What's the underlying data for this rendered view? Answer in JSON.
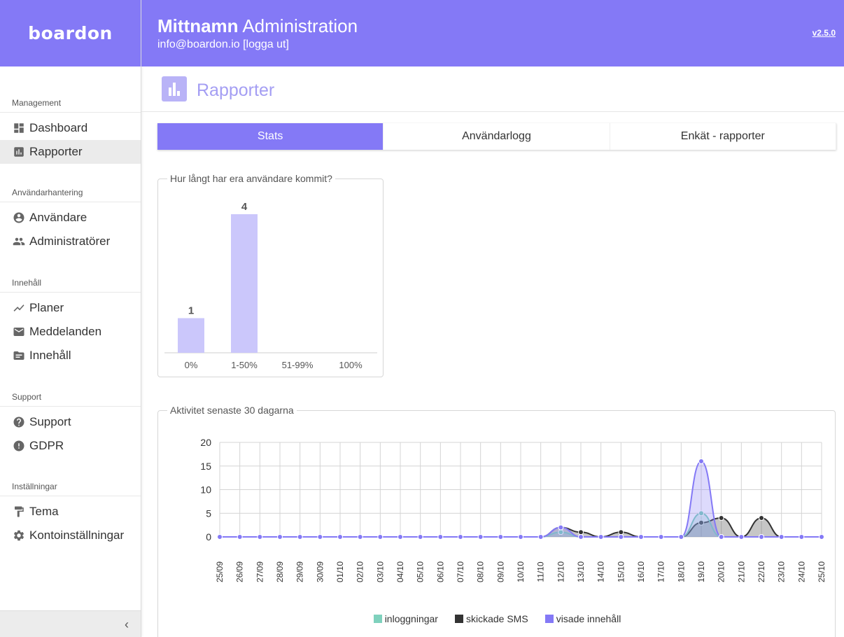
{
  "brand": {
    "logo": "boardon",
    "header_color": "#8479f6"
  },
  "header": {
    "title_bold": "Mittnamn",
    "title_rest": "Administration",
    "user_line": "info@boardon.io [logga ut]",
    "version": "v2.5.0"
  },
  "sidebar": {
    "groups": [
      {
        "heading": "Management",
        "items": [
          {
            "label": "Dashboard",
            "icon": "dashboard-icon"
          },
          {
            "label": "Rapporter",
            "icon": "bar-chart-icon",
            "active": true
          }
        ]
      },
      {
        "heading": "Användarhantering",
        "items": [
          {
            "label": "Användare",
            "icon": "account-circle-icon"
          },
          {
            "label": "Administratörer",
            "icon": "people-icon"
          }
        ]
      },
      {
        "heading": "Innehåll",
        "items": [
          {
            "label": "Planer",
            "icon": "trending-icon"
          },
          {
            "label": "Meddelanden",
            "icon": "mail-icon"
          },
          {
            "label": "Innehåll",
            "icon": "folder-icon"
          }
        ]
      },
      {
        "heading": "Support",
        "items": [
          {
            "label": "Support",
            "icon": "help-icon"
          },
          {
            "label": "GDPR",
            "icon": "alert-icon"
          }
        ]
      },
      {
        "heading": "Inställningar",
        "items": [
          {
            "label": "Tema",
            "icon": "paint-roller-icon"
          },
          {
            "label": "Kontoinställningar",
            "icon": "gear-icon"
          }
        ]
      }
    ],
    "collapse_glyph": "‹"
  },
  "page": {
    "title": "Rapporter"
  },
  "tabs": [
    {
      "label": "Stats",
      "active": true
    },
    {
      "label": "Användarlogg"
    },
    {
      "label": "Enkät - rapporter"
    }
  ],
  "panels": {
    "progress_title": "Hur långt har era användare kommit?",
    "activity_title": "Aktivitet senaste 30 dagarna"
  },
  "chart_data": [
    {
      "type": "bar",
      "title": "Hur långt har era användare kommit?",
      "categories": [
        "0%",
        "1-50%",
        "51-99%",
        "100%"
      ],
      "values": [
        1,
        4,
        0,
        0
      ],
      "data_labels": [
        "1",
        "4",
        "",
        ""
      ],
      "bar_color": "#cbc7fb",
      "ylim": [
        0,
        4
      ],
      "grid": false
    },
    {
      "type": "area",
      "title": "Aktivitet senaste 30 dagarna",
      "x": [
        "25/09",
        "26/09",
        "27/09",
        "28/09",
        "29/09",
        "30/09",
        "01/10",
        "02/10",
        "03/10",
        "04/10",
        "05/10",
        "06/10",
        "07/10",
        "08/10",
        "09/10",
        "10/10",
        "11/10",
        "12/10",
        "13/10",
        "14/10",
        "15/10",
        "16/10",
        "17/10",
        "18/10",
        "19/10",
        "20/10",
        "21/10",
        "22/10",
        "23/10",
        "24/10",
        "25/10"
      ],
      "yticks": [
        "0",
        "5",
        "10",
        "15",
        "20"
      ],
      "ylim": [
        0,
        20
      ],
      "grid": true,
      "legend_position": "bottom",
      "series": [
        {
          "name": "inloggningar",
          "color": "#7fd1bd",
          "values": [
            0,
            0,
            0,
            0,
            0,
            0,
            0,
            0,
            0,
            0,
            0,
            0,
            0,
            0,
            0,
            0,
            0,
            1,
            0,
            0,
            0,
            0,
            0,
            0,
            5,
            0,
            0,
            0,
            0,
            0,
            0
          ]
        },
        {
          "name": "skickade SMS",
          "color": "#333333",
          "values": [
            0,
            0,
            0,
            0,
            0,
            0,
            0,
            0,
            0,
            0,
            0,
            0,
            0,
            0,
            0,
            0,
            0,
            2,
            1,
            0,
            1,
            0,
            0,
            0,
            3,
            4,
            0,
            4,
            0,
            0,
            0
          ]
        },
        {
          "name": "visade innehåll",
          "color": "#8479f6",
          "values": [
            0,
            0,
            0,
            0,
            0,
            0,
            0,
            0,
            0,
            0,
            0,
            0,
            0,
            0,
            0,
            0,
            0,
            2,
            0,
            0,
            0,
            0,
            0,
            0,
            16,
            0,
            0,
            0,
            0,
            0,
            0
          ]
        }
      ]
    }
  ]
}
